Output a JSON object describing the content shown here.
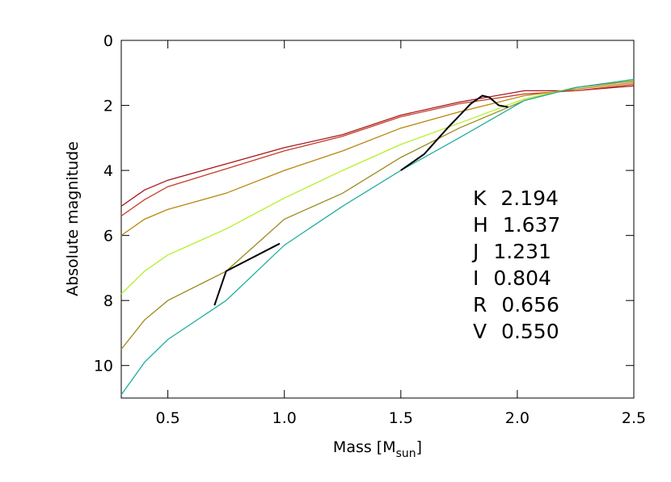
{
  "chart_data": {
    "type": "line",
    "x_label": [
      "Mass [M",
      "sun",
      "]"
    ],
    "y_label": "Absolute magnitude",
    "xlim": [
      0.3,
      2.5
    ],
    "ylim": [
      11,
      0
    ],
    "y_inverted": true,
    "xticks": [
      0.5,
      {
        "value": 1,
        "label": "1.0"
      },
      1.5,
      {
        "value": 2,
        "label": "2.0"
      },
      2.5
    ],
    "yticks": [
      0,
      2,
      4,
      6,
      8,
      10
    ],
    "x": [
      0.3,
      0.4,
      0.5,
      0.75,
      1.0,
      1.25,
      1.5,
      1.75,
      2.03,
      2.25,
      2.5
    ],
    "series": [
      {
        "name": "K 2.194",
        "color": "#a8161a",
        "values": [
          5.1,
          4.6,
          4.3,
          3.8,
          3.3,
          2.9,
          2.3,
          1.9,
          1.55,
          1.55,
          1.4
        ]
      },
      {
        "name": "H 1.637",
        "color": "#c43c28",
        "values": [
          5.4,
          4.9,
          4.5,
          3.95,
          3.4,
          2.95,
          2.35,
          1.95,
          1.65,
          1.55,
          1.35
        ]
      },
      {
        "name": "J 1.231",
        "color": "#b8860b",
        "values": [
          6.0,
          5.5,
          5.2,
          4.7,
          4.0,
          3.4,
          2.7,
          2.2,
          1.7,
          1.5,
          1.3
        ]
      },
      {
        "name": "I 0.804",
        "color": "#b4f02a",
        "values": [
          7.8,
          7.1,
          6.6,
          5.8,
          4.85,
          4.0,
          3.2,
          2.55,
          1.8,
          1.45,
          1.25
        ]
      },
      {
        "name": "R 0.656",
        "color": "#9a8a1c",
        "values": [
          9.5,
          8.6,
          8.0,
          7.1,
          5.5,
          4.7,
          3.6,
          2.7,
          1.85,
          1.45,
          1.25
        ]
      },
      {
        "name": "V 0.550",
        "color": "#1fae9e",
        "values": [
          10.9,
          9.9,
          9.2,
          8.0,
          6.3,
          5.1,
          4.0,
          3.0,
          1.85,
          1.45,
          1.2
        ]
      },
      {
        "color": "#000000",
        "x": [
          0.7,
          0.75,
          0.98
        ],
        "values": [
          8.15,
          7.1,
          6.25
        ]
      },
      {
        "color": "#000000",
        "x": [
          1.5,
          1.6,
          1.7,
          1.8,
          1.85,
          1.88,
          1.92,
          1.96
        ],
        "values": [
          4.0,
          3.5,
          2.7,
          1.95,
          1.7,
          1.75,
          2.0,
          2.05
        ]
      }
    ]
  }
}
